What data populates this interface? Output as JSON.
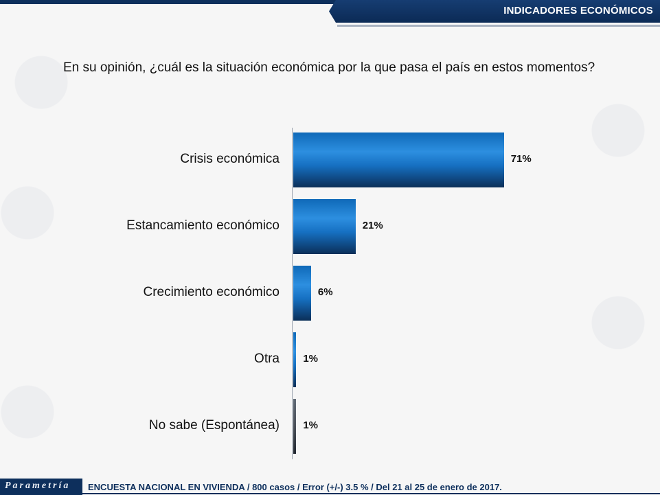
{
  "header": {
    "title": "INDICADORES ECONÓMICOS"
  },
  "question": "En su opinión, ¿cuál es la situación económica por la que pasa el país en estos momentos?",
  "footer": {
    "logo": "Parametría",
    "note": "ENCUESTA NACIONAL EN VIVIENDA / 800 casos / Error (+/-) 3.5 % / Del 21 al 25 de enero de 2017."
  },
  "chart_data": {
    "type": "bar",
    "orientation": "horizontal",
    "categories": [
      "Crisis económica",
      "Estancamiento económico",
      "Crecimiento económico",
      "Otra",
      "No sabe (Espontánea)"
    ],
    "values": [
      71,
      21,
      6,
      1,
      1
    ],
    "value_labels": [
      "71%",
      "21%",
      "6%",
      "1%",
      "1%"
    ],
    "xlim": [
      0,
      100
    ],
    "colors": [
      "#1a78d0",
      "#1a78d0",
      "#1a78d0",
      "#1a78d0",
      "#4a4f58"
    ]
  }
}
